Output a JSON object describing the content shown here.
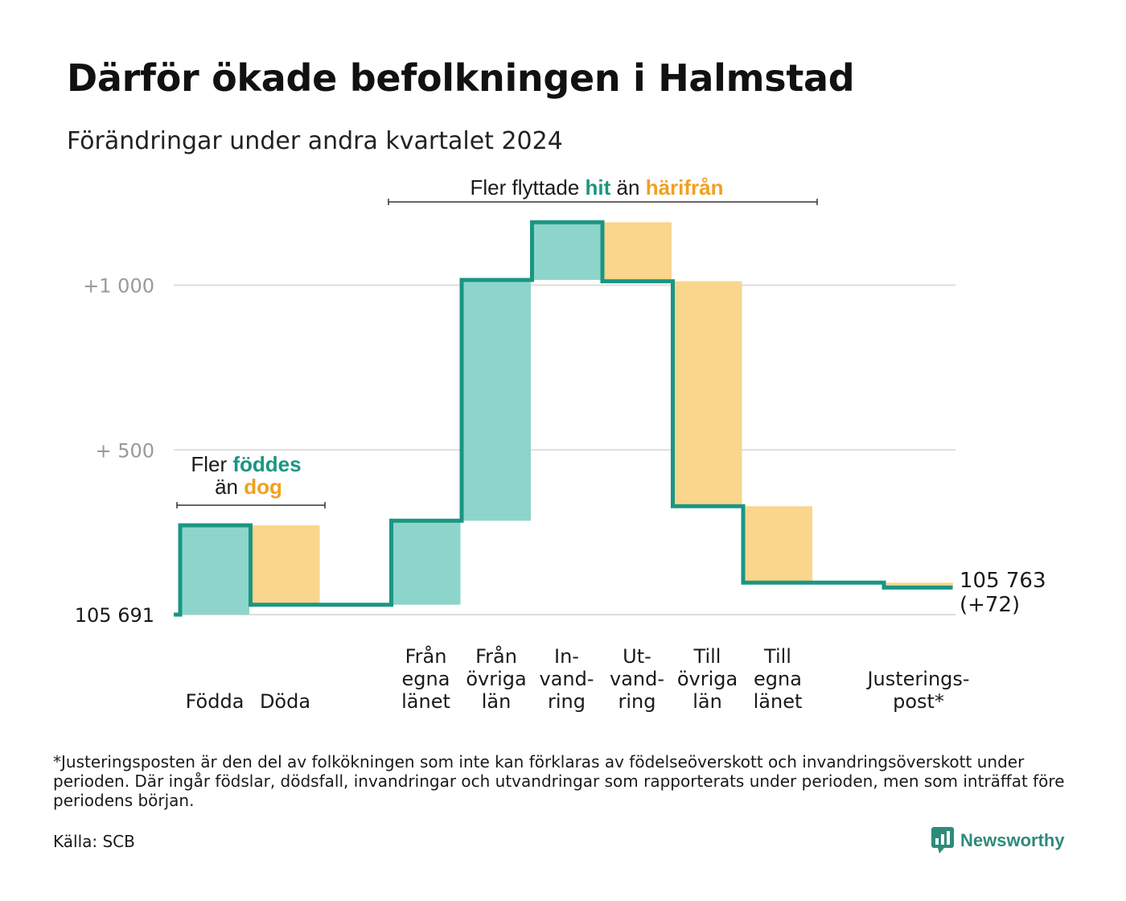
{
  "title": "Därför ökade befolkningen i Halmstad",
  "subtitle": "Förändringar under andra kvartalet 2024",
  "colors": {
    "positive": "#8dd5ca",
    "negative": "#fad58c",
    "line": "#1a9683",
    "accent_positive": "#1a9683",
    "accent_negative": "#f0a020",
    "grid": "#dddddd",
    "tick": "#9a9a9a"
  },
  "chart_data": {
    "type": "waterfall",
    "start_value": 105691,
    "end_value": 105763,
    "ylim": [
      0,
      1200
    ],
    "yticks": [
      {
        "value": 500,
        "label": "+  500"
      },
      {
        "value": 1000,
        "label": "+1  000"
      }
    ],
    "baseline_label": "105  691",
    "end_label": [
      "105 763",
      "(+72)"
    ],
    "steps": [
      {
        "label": [
          "Födda"
        ],
        "change": 271,
        "kind": "in"
      },
      {
        "label": [
          "Döda"
        ],
        "change": -241,
        "kind": "out"
      },
      {
        "label": [],
        "change": 0,
        "kind": "gap"
      },
      {
        "label": [
          "Från",
          "egna",
          "länet"
        ],
        "change": 255,
        "kind": "in"
      },
      {
        "label": [
          "Från",
          "övriga",
          "län"
        ],
        "change": 731,
        "kind": "in"
      },
      {
        "label": [
          "In-",
          "vand-",
          "ring"
        ],
        "change": 175,
        "kind": "in"
      },
      {
        "label": [
          "Ut-",
          "vand-",
          "ring"
        ],
        "change": -179,
        "kind": "out"
      },
      {
        "label": [
          "Till",
          "övriga",
          "län"
        ],
        "change": -683,
        "kind": "out"
      },
      {
        "label": [
          "Till",
          "egna",
          "länet"
        ],
        "change": -232,
        "kind": "out"
      },
      {
        "label": [],
        "change": 0,
        "kind": "gap"
      },
      {
        "label": [
          "Justerings-",
          "post*"
        ],
        "change": -15,
        "kind": "out"
      }
    ],
    "annotations": [
      {
        "text": [
          {
            "t": "Fler ",
            "style": "plain"
          },
          {
            "t": "föddes",
            "style": "positive"
          }
        ],
        "text2": [
          {
            "t": "än ",
            "style": "plain"
          },
          {
            "t": "dog",
            "style": "negative"
          }
        ]
      },
      {
        "text": [
          {
            "t": "Fler flyttade ",
            "style": "plain"
          },
          {
            "t": "hit",
            "style": "positive"
          },
          {
            "t": "  än ",
            "style": "plain"
          },
          {
            "t": "härifrån",
            "style": "negative"
          }
        ]
      }
    ]
  },
  "footnote": "*Justeringsposten är den del av folkökningen som inte kan förklaras av födelseöverskott och invandringsöverskott under perioden. Där ingår födslar, dödsfall, invandringar och utvandringar som rapporterats under perioden, men som inträffat före periodens början.",
  "source": "Källa: SCB",
  "logo": {
    "name": "Newsworthy",
    "icon": "bar-chart-bubble-icon"
  }
}
